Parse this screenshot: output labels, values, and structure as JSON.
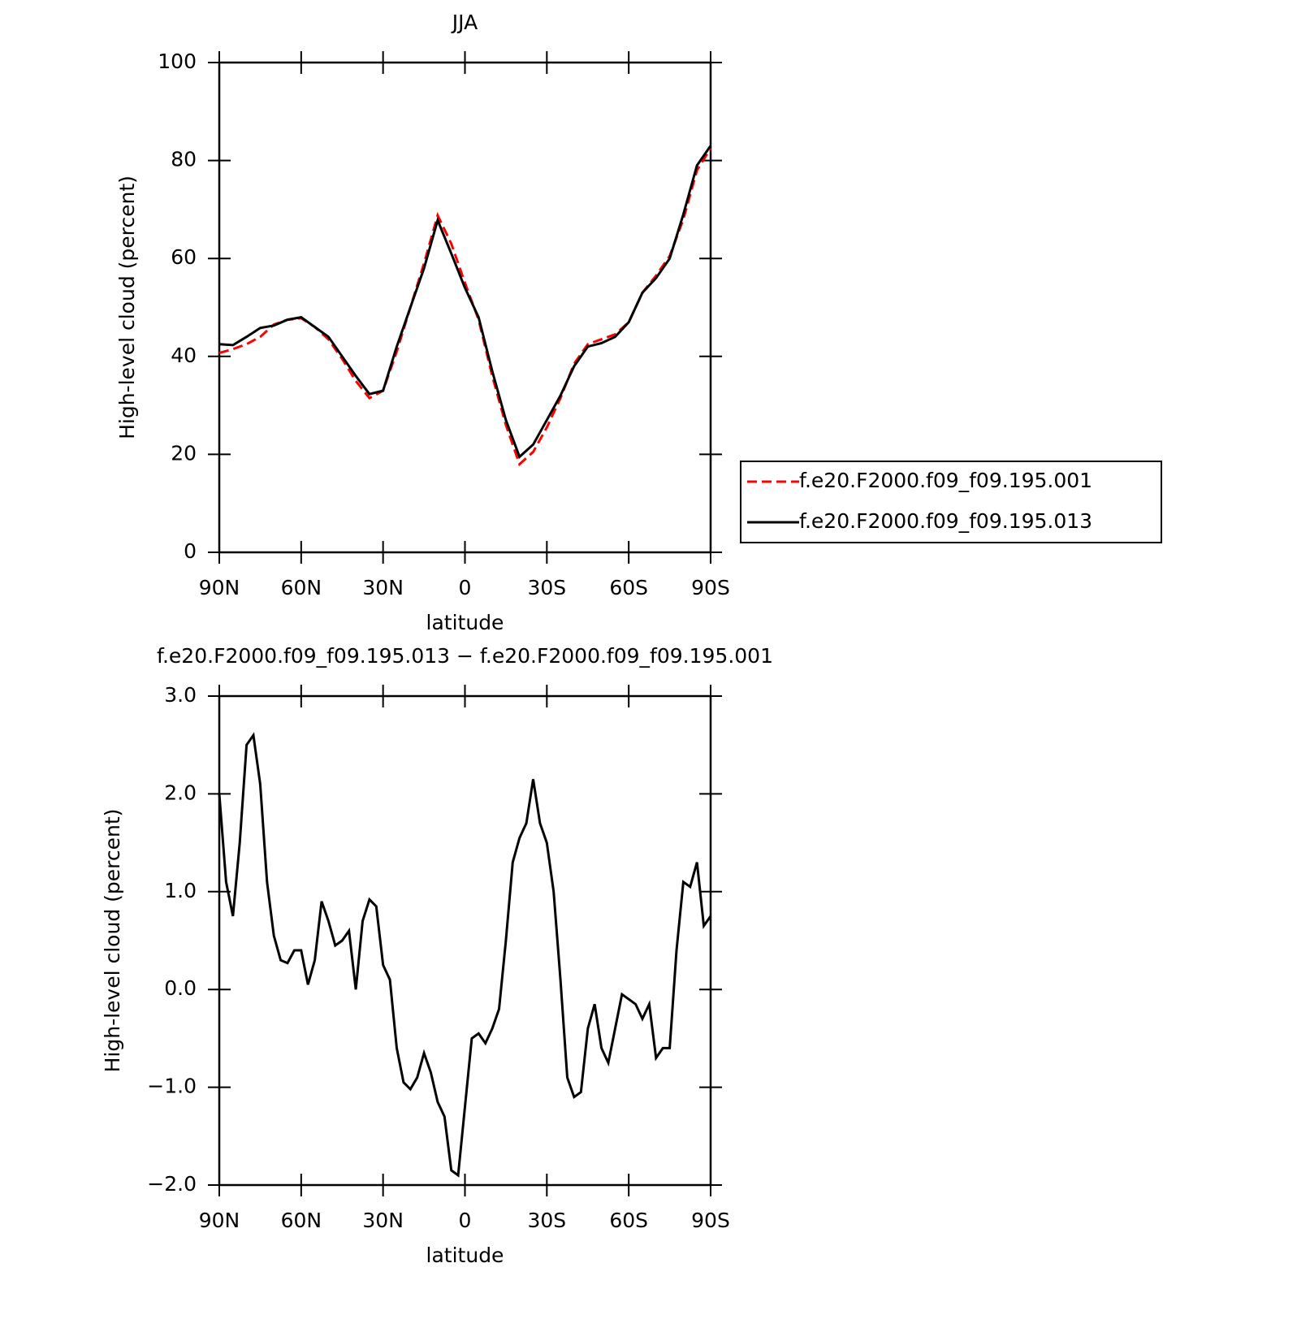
{
  "chart_data": [
    {
      "type": "line",
      "title": "JJA",
      "xlabel": "latitude",
      "ylabel": "High-level cloud (percent)",
      "x": [
        90,
        85,
        80,
        75,
        70,
        65,
        60,
        55,
        50,
        45,
        40,
        35,
        30,
        25,
        20,
        15,
        10,
        5,
        0,
        -5,
        -10,
        -15,
        -20,
        -25,
        -30,
        -35,
        -40,
        -45,
        -50,
        -55,
        -60,
        -65,
        -70,
        -75,
        -80,
        -85,
        -90
      ],
      "xlim": [
        90,
        -90
      ],
      "xticks": [
        {
          "value": 90,
          "label": "90N"
        },
        {
          "value": 60,
          "label": "60N"
        },
        {
          "value": 30,
          "label": "30N"
        },
        0,
        {
          "value": -30,
          "label": "30S"
        },
        {
          "value": -60,
          "label": "60S"
        },
        {
          "value": -90,
          "label": "90S"
        }
      ],
      "ylim": [
        0,
        100
      ],
      "yticks": [
        0,
        20,
        40,
        60,
        80,
        100
      ],
      "legend": "outside-right",
      "series": [
        {
          "name": "f.e20.F2000.f09_f09.195.001",
          "color": "#ff0000",
          "linestyle": "dashed",
          "values": [
            40.7,
            41.5,
            42.5,
            44,
            46.5,
            47.5,
            47.8,
            46,
            43.5,
            39.5,
            35,
            31.5,
            33,
            41,
            50,
            59,
            68.8,
            63,
            55,
            47.5,
            36,
            26,
            18,
            20.5,
            25.5,
            31.5,
            38.5,
            42.5,
            43.5,
            44.5,
            47,
            53,
            56.5,
            60.5,
            68,
            78,
            82.5
          ]
        },
        {
          "name": "f.e20.F2000.f09_f09.195.013",
          "color": "#000000",
          "linestyle": "solid",
          "values": [
            42.5,
            42.3,
            44,
            45.8,
            46.3,
            47.5,
            48,
            46,
            44,
            40,
            36,
            32.3,
            33,
            42,
            50,
            58,
            67.8,
            61,
            54,
            48,
            37,
            27,
            19.5,
            22,
            27,
            32,
            38,
            42,
            42.7,
            44,
            47,
            53,
            56,
            60,
            69,
            79,
            83
          ]
        }
      ]
    },
    {
      "type": "line",
      "title": "f.e20.F2000.f09_f09.195.013 − f.e20.F2000.f09_f09.195.001",
      "xlabel": "latitude",
      "ylabel": "High-level cloud (percent)",
      "x": [
        90,
        87.5,
        85,
        82.5,
        80,
        77.5,
        75,
        72.5,
        70,
        67.5,
        65,
        62.5,
        60,
        57.5,
        55,
        52.5,
        50,
        47.5,
        45,
        42.5,
        40,
        37.5,
        35,
        32.5,
        30,
        27.5,
        25,
        22.5,
        20,
        17.5,
        15,
        12.5,
        10,
        7.5,
        5,
        2.5,
        0,
        -2.5,
        -5,
        -7.5,
        -10,
        -12.5,
        -15,
        -17.5,
        -20,
        -22.5,
        -25,
        -27.5,
        -30,
        -32.5,
        -35,
        -37.5,
        -40,
        -42.5,
        -45,
        -47.5,
        -50,
        -52.5,
        -55,
        -57.5,
        -60,
        -62.5,
        -65,
        -67.5,
        -70,
        -72.5,
        -75,
        -77.5,
        -80,
        -82.5,
        -85,
        -87.5,
        -90
      ],
      "xlim": [
        90,
        -90
      ],
      "xticks": [
        {
          "value": 90,
          "label": "90N"
        },
        {
          "value": 60,
          "label": "60N"
        },
        {
          "value": 30,
          "label": "30N"
        },
        0,
        {
          "value": -30,
          "label": "30S"
        },
        {
          "value": -60,
          "label": "60S"
        },
        {
          "value": -90,
          "label": "90S"
        }
      ],
      "ylim": [
        -2,
        3
      ],
      "yticks": [
        {
          "value": -2,
          "label": "−2.0"
        },
        {
          "value": -1,
          "label": "−1.0"
        },
        {
          "value": 0,
          "label": "0.0"
        },
        {
          "value": 1,
          "label": "1.0"
        },
        {
          "value": 2,
          "label": "2.0"
        },
        {
          "value": 3,
          "label": "3.0"
        }
      ],
      "series": [
        {
          "color": "#000000",
          "linestyle": "solid",
          "values": [
            2.0,
            1.1,
            0.75,
            1.5,
            2.5,
            2.6,
            2.1,
            1.1,
            0.55,
            0.3,
            0.27,
            0.4,
            0.4,
            0.05,
            0.3,
            0.9,
            0.7,
            0.45,
            0.5,
            0.6,
            0.0,
            0.7,
            0.92,
            0.85,
            0.25,
            0.1,
            -0.6,
            -0.95,
            -1.02,
            -0.9,
            -0.65,
            -0.85,
            -1.15,
            -1.3,
            -1.85,
            -1.9,
            -1.2,
            -0.5,
            -0.45,
            -0.55,
            -0.4,
            -0.2,
            0.5,
            1.3,
            1.55,
            1.7,
            2.15,
            1.7,
            1.5,
            1.0,
            0.1,
            -0.9,
            -1.1,
            -1.05,
            -0.4,
            -0.15,
            -0.6,
            -0.75,
            -0.4,
            -0.05,
            -0.1,
            -0.15,
            -0.3,
            -0.15,
            -0.7,
            -0.6,
            -0.6,
            0.4,
            1.1,
            1.05,
            1.3,
            0.65,
            0.75
          ]
        }
      ]
    }
  ]
}
